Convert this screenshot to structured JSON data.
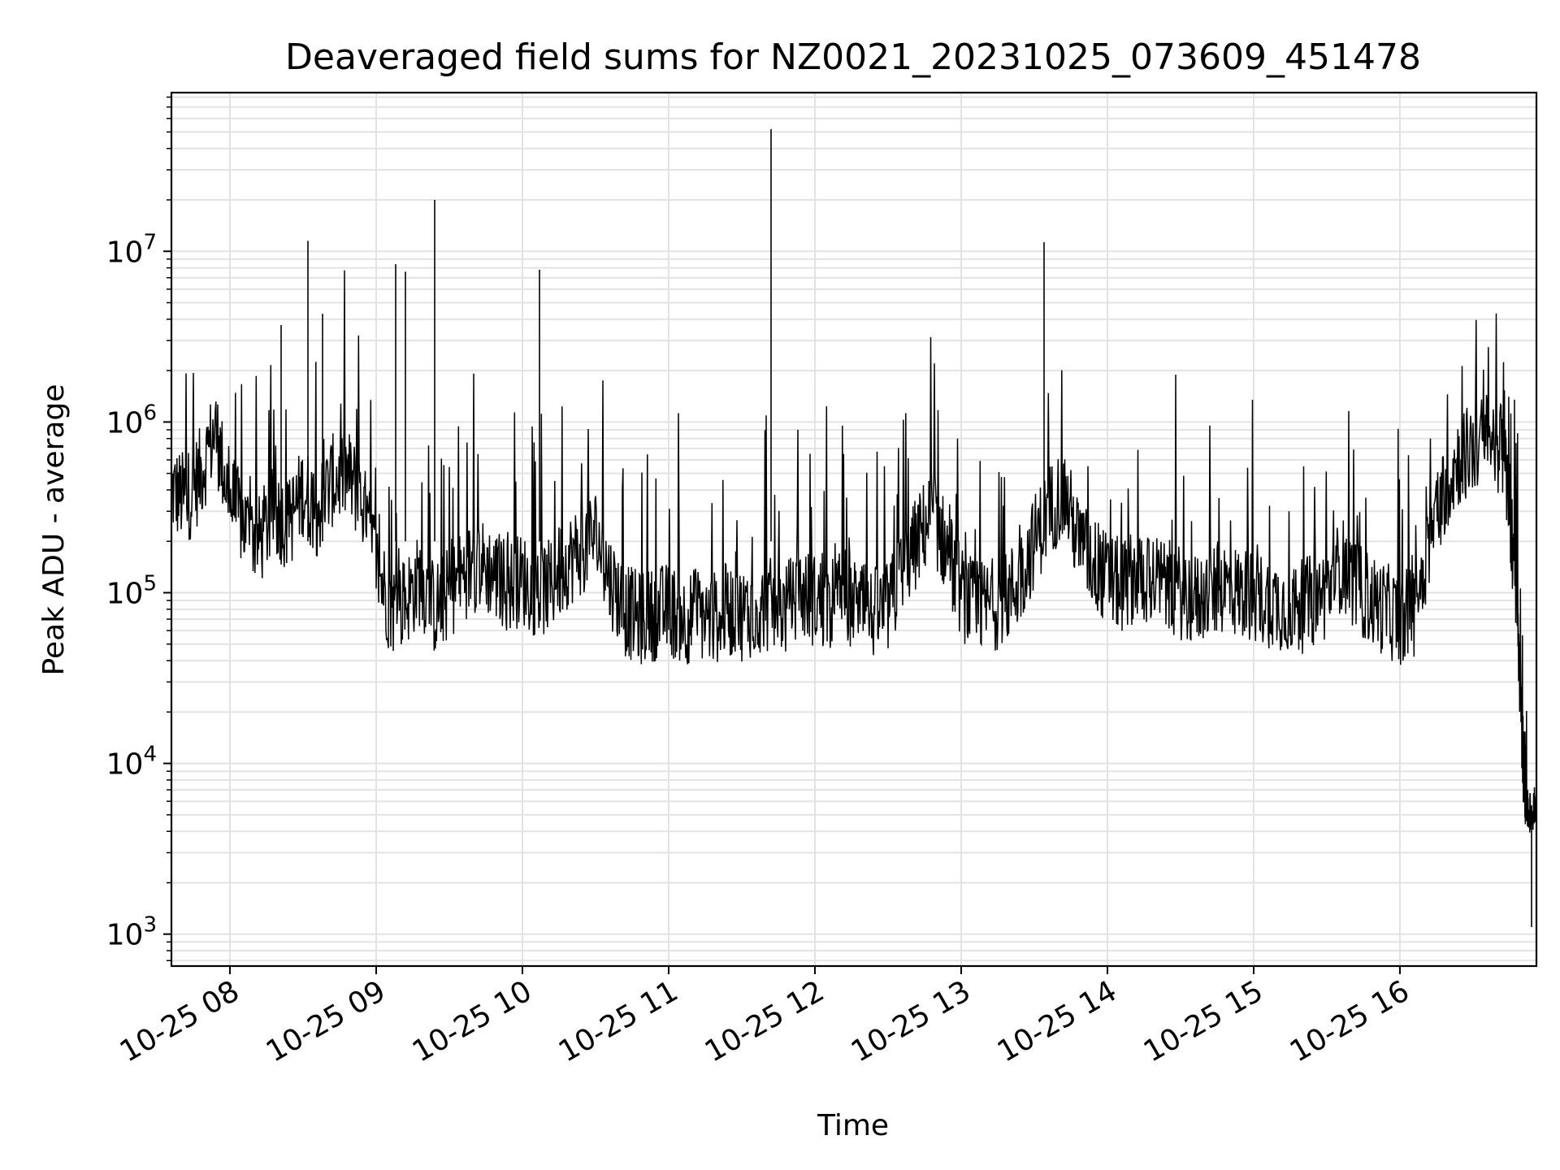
{
  "chart_data": {
    "type": "line",
    "title": "Deaveraged field sums for NZ0021_20231025_073609_451478",
    "xlabel": "Time",
    "ylabel": "Peak ADU - average",
    "yscale": "log",
    "grid": true,
    "xlim": [
      "10-25 07:36",
      "10-25 16:56"
    ],
    "ylim": [
      650,
      85000000
    ],
    "x_ticks": [
      "10-25 08",
      "10-25 09",
      "10-25 10",
      "10-25 11",
      "10-25 12",
      "10-25 13",
      "10-25 14",
      "10-25 15",
      "10-25 16"
    ],
    "y_ticks": [
      {
        "base": "10",
        "exp": "3",
        "value": 1000
      },
      {
        "base": "10",
        "exp": "4",
        "value": 10000
      },
      {
        "base": "10",
        "exp": "5",
        "value": 100000
      },
      {
        "base": "10",
        "exp": "6",
        "value": 1000000
      },
      {
        "base": "10",
        "exp": "7",
        "value": 10000000
      }
    ],
    "line_color": "#000000",
    "series": [
      {
        "x": [
          "10-25 07:36",
          "10-25 07:42",
          "10-25 07:48",
          "10-25 07:54",
          "10-25 08:00",
          "10-25 08:06",
          "10-25 08:12",
          "10-25 08:18",
          "10-25 08:24",
          "10-25 08:30",
          "10-25 08:36",
          "10-25 08:42",
          "10-25 08:48",
          "10-25 08:54",
          "10-25 09:00",
          "10-25 09:06",
          "10-25 09:12",
          "10-25 09:18",
          "10-25 09:24",
          "10-25 09:30",
          "10-25 09:36",
          "10-25 09:42",
          "10-25 09:48",
          "10-25 09:54",
          "10-25 10:00",
          "10-25 10:06",
          "10-25 10:12",
          "10-25 10:18",
          "10-25 10:24",
          "10-25 10:30",
          "10-25 10:36",
          "10-25 10:42",
          "10-25 10:48",
          "10-25 10:54",
          "10-25 11:00",
          "10-25 11:06",
          "10-25 11:12",
          "10-25 11:18",
          "10-25 11:24",
          "10-25 11:30",
          "10-25 11:36",
          "10-25 11:42",
          "10-25 11:48",
          "10-25 11:54",
          "10-25 12:00",
          "10-25 12:06",
          "10-25 12:12",
          "10-25 12:18",
          "10-25 12:24",
          "10-25 12:30",
          "10-25 12:36",
          "10-25 12:42",
          "10-25 12:48",
          "10-25 12:54",
          "10-25 13:00",
          "10-25 13:06",
          "10-25 13:12",
          "10-25 13:18",
          "10-25 13:24",
          "10-25 13:30",
          "10-25 13:36",
          "10-25 13:42",
          "10-25 13:48",
          "10-25 13:54",
          "10-25 14:00",
          "10-25 14:06",
          "10-25 14:12",
          "10-25 14:18",
          "10-25 14:24",
          "10-25 14:30",
          "10-25 14:36",
          "10-25 14:42",
          "10-25 14:48",
          "10-25 14:54",
          "10-25 15:00",
          "10-25 15:06",
          "10-25 15:12",
          "10-25 15:18",
          "10-25 15:24",
          "10-25 15:30",
          "10-25 15:36",
          "10-25 15:42",
          "10-25 15:48",
          "10-25 15:54",
          "10-25 16:00",
          "10-25 16:06",
          "10-25 16:12",
          "10-25 16:18",
          "10-25 16:24",
          "10-25 16:30",
          "10-25 16:36",
          "10-25 16:42",
          "10-25 16:45",
          "10-25 16:48",
          "10-25 16:50",
          "10-25 16:52",
          "10-25 16:54",
          "10-25 16:56"
        ],
        "y": [
          400000,
          350000,
          500000,
          900000,
          350000,
          250000,
          200000,
          300000,
          250000,
          400000,
          300000,
          450000,
          500000,
          350000,
          150000,
          80000,
          90000,
          120000,
          80000,
          100000,
          130000,
          150000,
          130000,
          110000,
          120000,
          100000,
          110000,
          150000,
          180000,
          220000,
          120000,
          80000,
          70000,
          75000,
          80000,
          70000,
          75000,
          70000,
          80000,
          75000,
          80000,
          85000,
          80000,
          100000,
          90000,
          85000,
          100000,
          80000,
          75000,
          80000,
          130000,
          200000,
          300000,
          180000,
          100000,
          80000,
          85000,
          90000,
          120000,
          200000,
          300000,
          400000,
          200000,
          150000,
          120000,
          110000,
          130000,
          120000,
          110000,
          100000,
          90000,
          100000,
          110000,
          100000,
          95000,
          90000,
          85000,
          80000,
          90000,
          100000,
          150000,
          110000,
          90000,
          80000,
          70000,
          80000,
          200000,
          400000,
          600000,
          700000,
          800000,
          700000,
          300000,
          100000,
          15000,
          5500,
          5000,
          6000
        ]
      }
    ],
    "spikes": [
      {
        "x": "10-25 08:21",
        "y": 3700000
      },
      {
        "x": "10-25 08:32",
        "y": 11500000
      },
      {
        "x": "10-25 08:38",
        "y": 4300000
      },
      {
        "x": "10-25 09:08",
        "y": 8400000
      },
      {
        "x": "10-25 09:12",
        "y": 7600000
      },
      {
        "x": "10-25 09:24",
        "y": 20000000
      },
      {
        "x": "10-25 10:07",
        "y": 7800000
      },
      {
        "x": "10-25 11:42",
        "y": 52000000
      },
      {
        "x": "10-25 13:34",
        "y": 11300000
      },
      {
        "x": "10-25 16:54",
        "y": 1100
      }
    ]
  }
}
